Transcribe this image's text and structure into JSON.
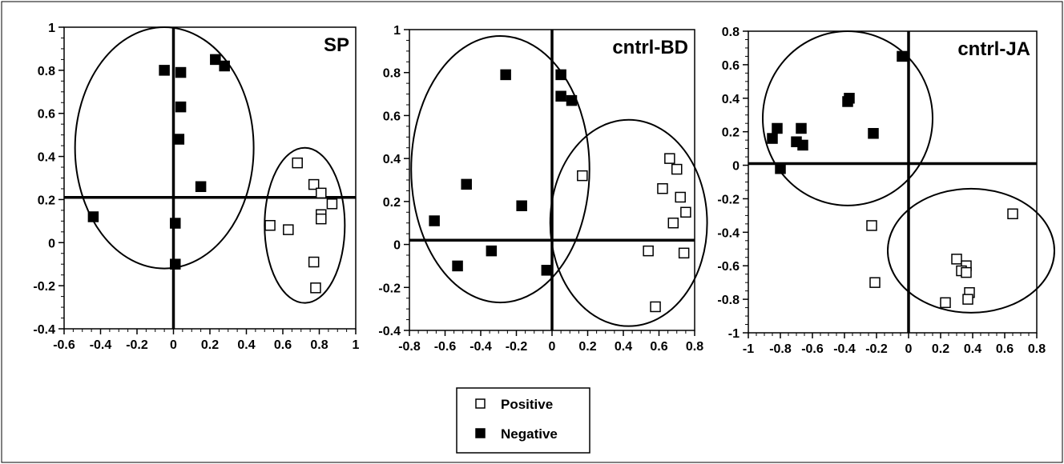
{
  "chart_data": [
    {
      "type": "scatter",
      "title": "SP",
      "xlabel": "",
      "ylabel": "",
      "xlim": [
        -0.6,
        1
      ],
      "ylim": [
        -0.4,
        1
      ],
      "x_ticks": [
        "-0.6",
        "-0.4",
        "-0.2",
        "0",
        "0.2",
        "0.4",
        "0.6",
        "0.8",
        "1"
      ],
      "y_ticks": [
        "-0.4",
        "-0.2",
        "0",
        "0.2",
        "0.4",
        "0.6",
        "0.8",
        "1"
      ],
      "reference_lines": {
        "vertical_x": 0,
        "horizontal_y": 0.21
      },
      "clusters": [
        {
          "cx": -0.05,
          "cy": 0.44,
          "rx": 0.49,
          "ry": 0.56
        },
        {
          "cx": 0.72,
          "cy": 0.08,
          "rx": 0.22,
          "ry": 0.36
        }
      ],
      "series": [
        {
          "name": "Positive",
          "marker": "open-square",
          "points": [
            [
              0.68,
              0.37
            ],
            [
              0.77,
              0.27
            ],
            [
              0.81,
              0.23
            ],
            [
              0.87,
              0.18
            ],
            [
              0.81,
              0.13
            ],
            [
              0.81,
              0.11
            ],
            [
              0.53,
              0.08
            ],
            [
              0.63,
              0.06
            ],
            [
              0.77,
              -0.09
            ],
            [
              0.78,
              -0.21
            ]
          ]
        },
        {
          "name": "Negative",
          "marker": "filled-square",
          "points": [
            [
              -0.05,
              0.8
            ],
            [
              0.04,
              0.79
            ],
            [
              0.23,
              0.85
            ],
            [
              0.28,
              0.82
            ],
            [
              0.04,
              0.63
            ],
            [
              0.03,
              0.48
            ],
            [
              0.15,
              0.26
            ],
            [
              -0.44,
              0.12
            ],
            [
              0.01,
              0.09
            ],
            [
              0.01,
              -0.1
            ]
          ]
        }
      ]
    },
    {
      "type": "scatter",
      "title": "cntrl-BD",
      "xlabel": "",
      "ylabel": "",
      "xlim": [
        -0.8,
        0.8
      ],
      "ylim": [
        -0.4,
        1
      ],
      "x_ticks": [
        "-0.8",
        "-0.6",
        "-0.4",
        "-0.2",
        "0",
        "0.2",
        "0.4",
        "0.6",
        "0.8"
      ],
      "y_ticks": [
        "-0.4",
        "-0.2",
        "0",
        "0.2",
        "0.4",
        "0.6",
        "0.8",
        "1"
      ],
      "reference_lines": {
        "vertical_x": 0,
        "horizontal_y": 0.02
      },
      "clusters": [
        {
          "cx": -0.29,
          "cy": 0.35,
          "rx": 0.5,
          "ry": 0.62
        },
        {
          "cx": 0.43,
          "cy": 0.1,
          "rx": 0.44,
          "ry": 0.48
        }
      ],
      "series": [
        {
          "name": "Positive",
          "marker": "open-square",
          "points": [
            [
              0.17,
              0.32
            ],
            [
              0.66,
              0.4
            ],
            [
              0.7,
              0.35
            ],
            [
              0.62,
              0.26
            ],
            [
              0.72,
              0.22
            ],
            [
              0.75,
              0.15
            ],
            [
              0.68,
              0.1
            ],
            [
              0.54,
              -0.03
            ],
            [
              0.74,
              -0.04
            ],
            [
              0.58,
              -0.29
            ]
          ]
        },
        {
          "name": "Negative",
          "marker": "filled-square",
          "points": [
            [
              -0.26,
              0.79
            ],
            [
              0.05,
              0.79
            ],
            [
              0.05,
              0.69
            ],
            [
              0.11,
              0.67
            ],
            [
              -0.48,
              0.28
            ],
            [
              -0.17,
              0.18
            ],
            [
              -0.66,
              0.11
            ],
            [
              -0.34,
              -0.03
            ],
            [
              -0.53,
              -0.1
            ],
            [
              -0.03,
              -0.12
            ]
          ]
        }
      ]
    },
    {
      "type": "scatter",
      "title": "cntrl-JA",
      "xlabel": "",
      "ylabel": "",
      "xlim": [
        -1,
        0.8
      ],
      "ylim": [
        -1,
        0.8
      ],
      "x_ticks": [
        "-1",
        "-0.8",
        "-0.6",
        "-0.4",
        "-0.2",
        "0",
        "0.2",
        "0.4",
        "0.6",
        "0.8"
      ],
      "y_ticks": [
        "-1",
        "-0.8",
        "-0.6",
        "-0.4",
        "-0.2",
        "0",
        "0.2",
        "0.4",
        "0.6",
        "0.8"
      ],
      "reference_lines": {
        "vertical_x": 0,
        "horizontal_y": 0.01
      },
      "clusters": [
        {
          "cx": -0.38,
          "cy": 0.28,
          "rx": 0.53,
          "ry": 0.52
        },
        {
          "cx": 0.39,
          "cy": -0.51,
          "rx": 0.52,
          "ry": 0.37
        }
      ],
      "series": [
        {
          "name": "Positive",
          "marker": "open-square",
          "points": [
            [
              0.65,
              -0.29
            ],
            [
              -0.23,
              -0.36
            ],
            [
              0.3,
              -0.56
            ],
            [
              0.36,
              -0.6
            ],
            [
              0.33,
              -0.63
            ],
            [
              0.36,
              -0.64
            ],
            [
              -0.21,
              -0.7
            ],
            [
              0.38,
              -0.76
            ],
            [
              0.37,
              -0.8
            ],
            [
              0.23,
              -0.82
            ]
          ]
        },
        {
          "name": "Negative",
          "marker": "filled-square",
          "points": [
            [
              -0.04,
              0.65
            ],
            [
              -0.37,
              0.4
            ],
            [
              -0.38,
              0.38
            ],
            [
              -0.82,
              0.22
            ],
            [
              -0.67,
              0.22
            ],
            [
              -0.85,
              0.16
            ],
            [
              -0.7,
              0.14
            ],
            [
              -0.66,
              0.12
            ],
            [
              -0.22,
              0.19
            ],
            [
              -0.8,
              -0.02
            ]
          ]
        }
      ]
    }
  ],
  "legend": {
    "position": "bottom-center",
    "items": [
      {
        "label": "Positive",
        "marker": "open-square"
      },
      {
        "label": "Negative",
        "marker": "filled-square"
      }
    ]
  }
}
